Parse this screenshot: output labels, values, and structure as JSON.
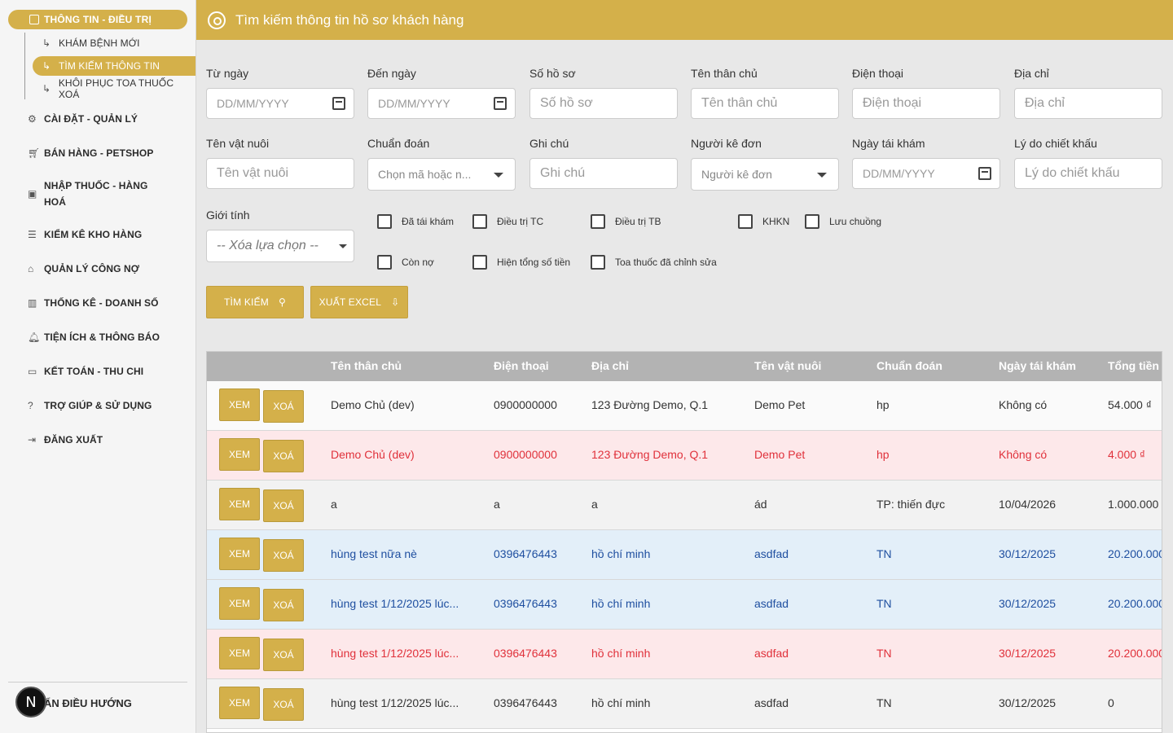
{
  "sidebar": {
    "group_label": "THÔNG TIN - ĐIỀU TRỊ",
    "sub_items": [
      {
        "label": "KHÁM BỆNH MỚI"
      },
      {
        "label": "TÌM KIẾM THÔNG TIN"
      },
      {
        "label": "KHÔI PHỤC TOA THUỐC XOÁ"
      }
    ],
    "items": [
      {
        "label": "CÀI ĐẶT - QUẢN LÝ",
        "icon": "gear-icon"
      },
      {
        "label": "BÁN HÀNG - PETSHOP",
        "icon": "cart-icon"
      },
      {
        "label": "NHẬP THUỐC - HÀNG HOÁ",
        "icon": "box-icon"
      },
      {
        "label": "KIỂM KÊ KHO HÀNG",
        "icon": "list-icon"
      },
      {
        "label": "QUẢN LÝ CÔNG NỢ",
        "icon": "bank-icon"
      },
      {
        "label": "THỐNG KÊ - DOANH SỐ",
        "icon": "chart-icon"
      },
      {
        "label": "TIỆN ÍCH & THÔNG BÁO",
        "icon": "bell-icon"
      },
      {
        "label": "KẾT TOÁN - THU CHI",
        "icon": "card-icon"
      },
      {
        "label": "TRỢ GIÚP & SỬ DỤNG",
        "icon": "help-icon"
      },
      {
        "label": "ĐĂNG XUẤT",
        "icon": "logout-icon"
      }
    ],
    "collapse_label": "ẨN ĐIỀU HƯỚNG",
    "badge": "N"
  },
  "header": {
    "title": "Tìm kiếm thông tin hồ sơ khách hàng"
  },
  "form": {
    "from_date": {
      "label": "Từ ngày",
      "placeholder": "DD/MM/YYYY"
    },
    "to_date": {
      "label": "Đến ngày",
      "placeholder": "DD/MM/YYYY"
    },
    "record_no": {
      "label": "Số hồ sơ",
      "placeholder": "Số hồ sơ"
    },
    "owner_name": {
      "label": "Tên thân chủ",
      "placeholder": "Tên thân chủ"
    },
    "phone": {
      "label": "Điện thoại",
      "placeholder": "Điện thoại"
    },
    "address": {
      "label": "Địa chỉ",
      "placeholder": "Địa chỉ"
    },
    "pet_name": {
      "label": "Tên vật nuôi",
      "placeholder": "Tên vật nuôi"
    },
    "diagnosis": {
      "label": "Chuẩn đoán",
      "placeholder": "Chọn mã hoặc n..."
    },
    "note": {
      "label": "Ghi chú",
      "placeholder": "Ghi chú"
    },
    "prescriber": {
      "label": "Người kê đơn",
      "placeholder": "Người kê đơn"
    },
    "revisit_date": {
      "label": "Ngày tái khám",
      "placeholder": "DD/MM/YYYY"
    },
    "discount_reason": {
      "label": "Lý do chiết khấu",
      "placeholder": "Lý do chiết khấu"
    },
    "gender": {
      "label": "Giới tính",
      "placeholder": "-- Xóa lựa chọn --"
    },
    "checkboxes": {
      "revisited": "Đã tái khám",
      "treat_tc": "Điều trị TC",
      "treat_tb": "Điều trị TB",
      "khkn": "KHKN",
      "boarding": "Lưu chuồng",
      "in_debt": "Còn nợ",
      "show_total": "Hiện tổng số tiền",
      "edited_rx": "Toa thuốc đã chỉnh sửa"
    },
    "search_button": "TÌM KIẾM",
    "export_button": "XUẤT EXCEL"
  },
  "table": {
    "columns": [
      "Tên thân chủ",
      "Điện thoại",
      "Địa chỉ",
      "Tên vật nuôi",
      "Chuẩn đoán",
      "Ngày tái khám",
      "Tổng tiền"
    ],
    "view_label": "XEM",
    "delete_label": "XOÁ",
    "rows": [
      {
        "owner": "Demo Chủ (dev)",
        "phone": "0900000000",
        "address": "123 Đường Demo, Q.1",
        "pet": "Demo Pet",
        "diagnosis": "hp",
        "revisit": "Không có",
        "total": "54.000 ₫"
      },
      {
        "owner": "Demo Chủ (dev)",
        "phone": "0900000000",
        "address": "123 Đường Demo, Q.1",
        "pet": "Demo Pet",
        "diagnosis": "hp",
        "revisit": "Không có",
        "total": "4.000 ₫"
      },
      {
        "owner": "a",
        "phone": "a",
        "address": "a",
        "pet": "ád",
        "diagnosis": "TP: thiến đực",
        "revisit": "10/04/2026",
        "total": "1.000.000"
      },
      {
        "owner": "hùng test nữa nè",
        "phone": "0396476443",
        "address": "hồ chí minh",
        "pet": "asdfad",
        "diagnosis": "TN",
        "revisit": "30/12/2025",
        "total": "20.200.000"
      },
      {
        "owner": "hùng test 1/12/2025 lúc...",
        "phone": "0396476443",
        "address": "hồ chí minh",
        "pet": "asdfad",
        "diagnosis": "TN",
        "revisit": "30/12/2025",
        "total": "20.200.000"
      },
      {
        "owner": "hùng test 1/12/2025 lúc...",
        "phone": "0396476443",
        "address": "hồ chí minh",
        "pet": "asdfad",
        "diagnosis": "TN",
        "revisit": "30/12/2025",
        "total": "20.200.000"
      },
      {
        "owner": "hùng test 1/12/2025 lúc...",
        "phone": "0396476443",
        "address": "hồ chí minh",
        "pet": "asdfad",
        "diagnosis": "TN",
        "revisit": "30/12/2025",
        "total": "0"
      }
    ]
  },
  "colors": {
    "accent": "#d4b04a",
    "pink_row_text": "#e0313b",
    "blue_row_text": "#1f4fa0"
  }
}
